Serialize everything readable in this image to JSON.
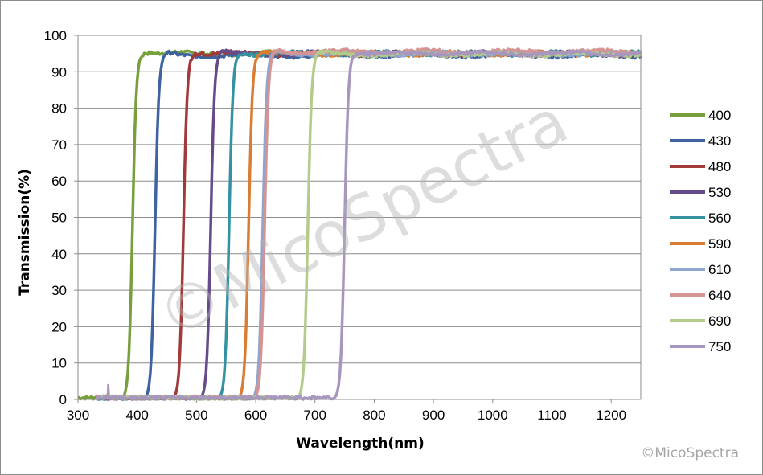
{
  "watermark_text": "©MicoSpectra",
  "corner_watermark": "©MicoSpectra",
  "chart_data": {
    "type": "line",
    "title": "",
    "xlabel": "Wavelength(nm)",
    "ylabel": "Transmission(%)",
    "xlim": [
      300,
      1250
    ],
    "ylim": [
      0,
      100
    ],
    "x_ticks": [
      300,
      400,
      500,
      600,
      700,
      800,
      900,
      1000,
      1100,
      1200
    ],
    "y_ticks": [
      0,
      10,
      20,
      30,
      40,
      50,
      60,
      70,
      80,
      90,
      100
    ],
    "grid": "horizontal",
    "legend_position": "right",
    "series": [
      {
        "name": "400",
        "color": "#77a03c",
        "edge_nm": 392,
        "plateau": 95.0
      },
      {
        "name": "430",
        "color": "#3d64a0",
        "edge_nm": 430,
        "plateau": 94.5
      },
      {
        "name": "480",
        "color": "#a23a3a",
        "edge_nm": 478,
        "plateau": 95.0
      },
      {
        "name": "530",
        "color": "#654b8a",
        "edge_nm": 524,
        "plateau": 95.0
      },
      {
        "name": "560",
        "color": "#3592a3",
        "edge_nm": 555,
        "plateau": 95.0
      },
      {
        "name": "590",
        "color": "#d97d35",
        "edge_nm": 588,
        "plateau": 95.0
      },
      {
        "name": "610",
        "color": "#8ea5cf",
        "edge_nm": 612,
        "plateau": 95.0
      },
      {
        "name": "640",
        "color": "#d49494",
        "edge_nm": 615,
        "plateau": 95.5
      },
      {
        "name": "690",
        "color": "#b3cc8c",
        "edge_nm": 688,
        "plateau": 94.8
      },
      {
        "name": "750",
        "color": "#a797bf",
        "edge_nm": 750,
        "plateau": 95.0
      }
    ]
  }
}
